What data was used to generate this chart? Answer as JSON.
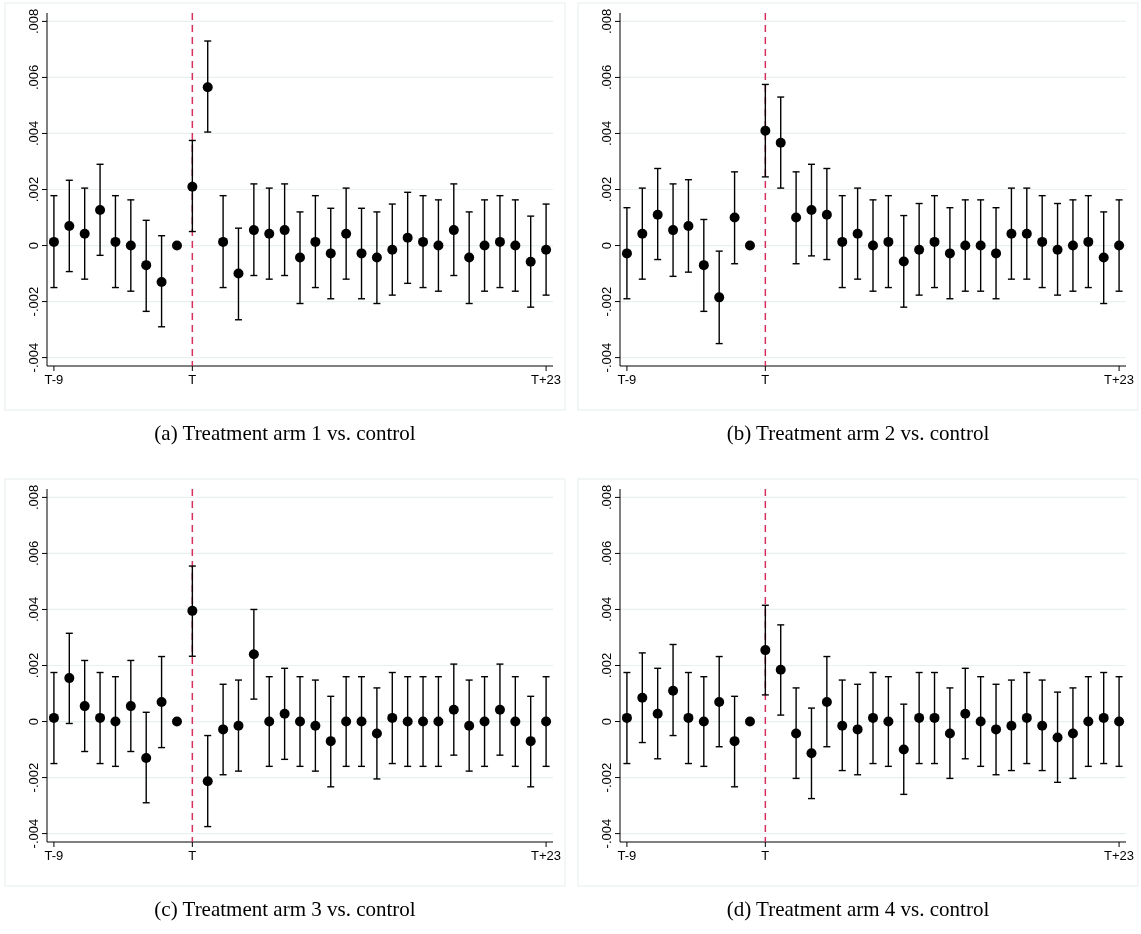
{
  "chart_data": [
    {
      "type": "scatter",
      "title": "(a) Treatment arm 1 vs. control",
      "color": "#000000",
      "marker": "circle",
      "grid": "y",
      "categories": [
        "T-9",
        null,
        null,
        null,
        null,
        null,
        null,
        null,
        null,
        "T",
        null,
        null,
        null,
        null,
        null,
        null,
        null,
        null,
        null,
        null,
        null,
        null,
        null,
        null,
        null,
        null,
        null,
        null,
        null,
        null,
        null,
        null,
        "T+23"
      ],
      "values": [
        0.00013,
        0.0007,
        0.00042,
        0.00127,
        0.00013,
        0,
        -0.0007,
        -0.0013,
        0,
        0.0021,
        0.00565,
        0.00013,
        -0.001,
        0.00055,
        0.00042,
        0.00055,
        -0.00043,
        0.00013,
        -0.00028,
        0.00042,
        -0.00028,
        -0.00043,
        -0.00015,
        0.00028,
        0.00013,
        0,
        0.00055,
        -0.00043,
        0,
        0.00013,
        0,
        -0.00058,
        -0.00015
      ],
      "errors": [
        [
          -0.0015,
          0.00178
        ],
        [
          -0.00093,
          0.00233
        ],
        [
          -0.0012,
          0.00205
        ],
        [
          -0.00035,
          0.0029
        ],
        [
          -0.0015,
          0.00178
        ],
        [
          -0.00163,
          0.00163
        ],
        [
          -0.00235,
          0.0009
        ],
        [
          -0.0029,
          0.00035
        ],
        null,
        [
          0.0005,
          0.00375
        ],
        [
          0.00405,
          0.0073
        ],
        [
          -0.0015,
          0.00178
        ],
        [
          -0.00265,
          0.00062
        ],
        [
          -0.00107,
          0.0022
        ],
        [
          -0.0012,
          0.00205
        ],
        [
          -0.00107,
          0.0022
        ],
        [
          -0.00207,
          0.0012
        ],
        [
          -0.0015,
          0.00178
        ],
        [
          -0.0019,
          0.00133
        ],
        [
          -0.0012,
          0.00205
        ],
        [
          -0.0019,
          0.00133
        ],
        [
          -0.00207,
          0.0012
        ],
        [
          -0.00177,
          0.00148
        ],
        [
          -0.00135,
          0.0019
        ],
        [
          -0.0015,
          0.00178
        ],
        [
          -0.00163,
          0.00163
        ],
        [
          -0.00107,
          0.0022
        ],
        [
          -0.00207,
          0.0012
        ],
        [
          -0.00163,
          0.00163
        ],
        [
          -0.0015,
          0.00178
        ],
        [
          -0.00163,
          0.00163
        ],
        [
          -0.0022,
          0.00105
        ],
        [
          -0.00177,
          0.00148
        ]
      ],
      "ylim": [
        -0.0043,
        0.0083
      ],
      "yticks": [
        {
          "value": -0.004,
          "label": "-.004"
        },
        {
          "value": -0.002,
          "label": "-.002"
        },
        {
          "value": 0,
          "label": "0"
        },
        {
          "value": 0.002,
          "label": ".002"
        },
        {
          "value": 0.004,
          "label": ".004"
        },
        {
          "value": 0.006,
          "label": ".006"
        },
        {
          "value": 0.008,
          "label": ".008"
        }
      ],
      "ref_lines": [
        {
          "axis": "x",
          "value": "T",
          "color": "#d6305c",
          "line_style": "dashed"
        }
      ]
    },
    {
      "type": "scatter",
      "title": "(b) Treatment arm 2 vs. control",
      "color": "#000000",
      "marker": "circle",
      "grid": "y",
      "categories": [
        "T-9",
        null,
        null,
        null,
        null,
        null,
        null,
        null,
        null,
        "T",
        null,
        null,
        null,
        null,
        null,
        null,
        null,
        null,
        null,
        null,
        null,
        null,
        null,
        null,
        null,
        null,
        null,
        null,
        null,
        null,
        null,
        null,
        "T+23"
      ],
      "values": [
        -0.00028,
        0.00042,
        0.0011,
        0.00055,
        0.0007,
        -0.0007,
        -0.00185,
        0.001,
        0,
        0.0041,
        0.00367,
        0.001,
        0.00127,
        0.0011,
        0.00013,
        0.00042,
        0,
        0.00013,
        -0.00057,
        -0.00015,
        0.00013,
        -0.00028,
        0,
        0,
        -0.00028,
        0.00042,
        0.00042,
        0.00013,
        -0.00015,
        0,
        0.00013,
        -0.00043,
        0
      ],
      "errors": [
        [
          -0.0019,
          0.00135
        ],
        [
          -0.0012,
          0.00205
        ],
        [
          -0.0005,
          0.00275
        ],
        [
          -0.0011,
          0.0022
        ],
        [
          -0.00095,
          0.00235
        ],
        [
          -0.00235,
          0.00093
        ],
        [
          -0.0035,
          -0.0002
        ],
        [
          -0.00065,
          0.00263
        ],
        null,
        [
          0.00245,
          0.00575
        ],
        [
          0.00205,
          0.0053
        ],
        [
          -0.00065,
          0.00263
        ],
        [
          -0.00037,
          0.0029
        ],
        [
          -0.0005,
          0.00275
        ],
        [
          -0.0015,
          0.00178
        ],
        [
          -0.0012,
          0.00205
        ],
        [
          -0.00163,
          0.00163
        ],
        [
          -0.0015,
          0.00178
        ],
        [
          -0.0022,
          0.00107
        ],
        [
          -0.00177,
          0.0015
        ],
        [
          -0.0015,
          0.00178
        ],
        [
          -0.0019,
          0.00135
        ],
        [
          -0.00163,
          0.00163
        ],
        [
          -0.00163,
          0.00163
        ],
        [
          -0.0019,
          0.00135
        ],
        [
          -0.0012,
          0.00205
        ],
        [
          -0.0012,
          0.00205
        ],
        [
          -0.0015,
          0.00178
        ],
        [
          -0.00177,
          0.0015
        ],
        [
          -0.00163,
          0.00163
        ],
        [
          -0.0015,
          0.00178
        ],
        [
          -0.00207,
          0.0012
        ],
        [
          -0.00163,
          0.00163
        ]
      ],
      "ylim": [
        -0.0043,
        0.0083
      ],
      "yticks": [
        {
          "value": -0.004,
          "label": "-.004"
        },
        {
          "value": -0.002,
          "label": "-.002"
        },
        {
          "value": 0,
          "label": "0"
        },
        {
          "value": 0.002,
          "label": ".002"
        },
        {
          "value": 0.004,
          "label": ".004"
        },
        {
          "value": 0.006,
          "label": ".006"
        },
        {
          "value": 0.008,
          "label": ".008"
        }
      ],
      "ref_lines": [
        {
          "axis": "x",
          "value": "T",
          "color": "#d6305c",
          "line_style": "dashed"
        }
      ]
    },
    {
      "type": "scatter",
      "title": "(c) Treatment arm 3 vs. control",
      "color": "#000000",
      "marker": "circle",
      "grid": "y",
      "categories": [
        "T-9",
        null,
        null,
        null,
        null,
        null,
        null,
        null,
        null,
        "T",
        null,
        null,
        null,
        null,
        null,
        null,
        null,
        null,
        null,
        null,
        null,
        null,
        null,
        null,
        null,
        null,
        null,
        null,
        null,
        null,
        null,
        null,
        "T+23"
      ],
      "values": [
        0.00013,
        0.00155,
        0.00055,
        0.00013,
        0,
        0.00055,
        -0.0013,
        0.0007,
        0,
        0.00395,
        -0.00213,
        -0.00028,
        -0.00015,
        0.0024,
        0,
        0.00028,
        0,
        -0.00015,
        -0.0007,
        0,
        0,
        -0.00043,
        0.00013,
        0,
        0,
        0,
        0.00042,
        -0.00015,
        0,
        0.00042,
        0,
        -0.0007,
        0
      ],
      "errors": [
        [
          -0.0015,
          0.00175
        ],
        [
          -7e-05,
          0.00315
        ],
        [
          -0.00107,
          0.00218
        ],
        [
          -0.0015,
          0.00175
        ],
        [
          -0.0016,
          0.0016
        ],
        [
          -0.00107,
          0.00218
        ],
        [
          -0.0029,
          0.00033
        ],
        [
          -0.00093,
          0.00232
        ],
        null,
        [
          0.00233,
          0.00555
        ],
        [
          -0.00375,
          -0.0005
        ],
        [
          -0.0019,
          0.00133
        ],
        [
          -0.00177,
          0.00148
        ],
        [
          0.0008,
          0.004
        ],
        [
          -0.0016,
          0.0016
        ],
        [
          -0.00135,
          0.0019
        ],
        [
          -0.0016,
          0.0016
        ],
        [
          -0.00177,
          0.00148
        ],
        [
          -0.00233,
          0.0009
        ],
        [
          -0.0016,
          0.0016
        ],
        [
          -0.0016,
          0.0016
        ],
        [
          -0.00205,
          0.0012
        ],
        [
          -0.0015,
          0.00175
        ],
        [
          -0.0016,
          0.0016
        ],
        [
          -0.0016,
          0.0016
        ],
        [
          -0.0016,
          0.0016
        ],
        [
          -0.0012,
          0.00205
        ],
        [
          -0.00177,
          0.00148
        ],
        [
          -0.0016,
          0.0016
        ],
        [
          -0.0012,
          0.00205
        ],
        [
          -0.0016,
          0.0016
        ],
        [
          -0.00233,
          0.0009
        ],
        [
          -0.0016,
          0.0016
        ]
      ],
      "ylim": [
        -0.0043,
        0.0083
      ],
      "yticks": [
        {
          "value": -0.004,
          "label": "-.004"
        },
        {
          "value": -0.002,
          "label": "-.002"
        },
        {
          "value": 0,
          "label": "0"
        },
        {
          "value": 0.002,
          "label": ".002"
        },
        {
          "value": 0.004,
          "label": ".004"
        },
        {
          "value": 0.006,
          "label": ".006"
        },
        {
          "value": 0.008,
          "label": ".008"
        }
      ],
      "ref_lines": [
        {
          "axis": "x",
          "value": "T",
          "color": "#d6305c",
          "line_style": "dashed"
        }
      ]
    },
    {
      "type": "scatter",
      "title": "(d) Treatment arm 4 vs. control",
      "color": "#000000",
      "marker": "circle",
      "grid": "y",
      "categories": [
        "T-9",
        null,
        null,
        null,
        null,
        null,
        null,
        null,
        null,
        "T",
        null,
        null,
        null,
        null,
        null,
        null,
        null,
        null,
        null,
        null,
        null,
        null,
        null,
        null,
        null,
        null,
        null,
        null,
        null,
        null,
        null,
        null,
        "T+23"
      ],
      "values": [
        0.00013,
        0.00085,
        0.00028,
        0.0011,
        0.00013,
        0,
        0.0007,
        -0.0007,
        0,
        0.00255,
        0.00185,
        -0.00043,
        -0.00113,
        0.0007,
        -0.00015,
        -0.00028,
        0.00013,
        0,
        -0.001,
        0.00013,
        0.00013,
        -0.00043,
        0.00028,
        0,
        -0.00028,
        -0.00015,
        0.00013,
        -0.00015,
        -0.00057,
        -0.00043,
        0,
        0.00013,
        0
      ],
      "errors": [
        [
          -0.0015,
          0.00175
        ],
        [
          -0.00075,
          0.00245
        ],
        [
          -0.00133,
          0.0019
        ],
        [
          -0.0005,
          0.00275
        ],
        [
          -0.0015,
          0.00175
        ],
        [
          -0.0016,
          0.0016
        ],
        [
          -0.0009,
          0.00232
        ],
        [
          -0.00233,
          0.0009
        ],
        null,
        [
          0.00095,
          0.00415
        ],
        [
          0.00023,
          0.00345
        ],
        [
          -0.00203,
          0.0012
        ],
        [
          -0.00275,
          0.00048
        ],
        [
          -0.0009,
          0.00232
        ],
        [
          -0.00175,
          0.00148
        ],
        [
          -0.0019,
          0.00133
        ],
        [
          -0.0015,
          0.00175
        ],
        [
          -0.0016,
          0.0016
        ],
        [
          -0.0026,
          0.00062
        ],
        [
          -0.0015,
          0.00175
        ],
        [
          -0.0015,
          0.00175
        ],
        [
          -0.00203,
          0.0012
        ],
        [
          -0.00133,
          0.0019
        ],
        [
          -0.0016,
          0.0016
        ],
        [
          -0.0019,
          0.00133
        ],
        [
          -0.00175,
          0.00148
        ],
        [
          -0.0015,
          0.00175
        ],
        [
          -0.00175,
          0.00148
        ],
        [
          -0.00217,
          0.00105
        ],
        [
          -0.00203,
          0.0012
        ],
        [
          -0.0016,
          0.0016
        ],
        [
          -0.0015,
          0.00175
        ],
        [
          -0.0016,
          0.0016
        ]
      ],
      "ylim": [
        -0.0043,
        0.0083
      ],
      "yticks": [
        {
          "value": -0.004,
          "label": "-.004"
        },
        {
          "value": -0.002,
          "label": "-.002"
        },
        {
          "value": 0,
          "label": "0"
        },
        {
          "value": 0.002,
          "label": ".002"
        },
        {
          "value": 0.004,
          "label": ".004"
        },
        {
          "value": 0.006,
          "label": ".006"
        },
        {
          "value": 0.008,
          "label": ".008"
        }
      ],
      "ref_lines": [
        {
          "axis": "x",
          "value": "T",
          "color": "#d6305c",
          "line_style": "dashed"
        }
      ]
    }
  ]
}
